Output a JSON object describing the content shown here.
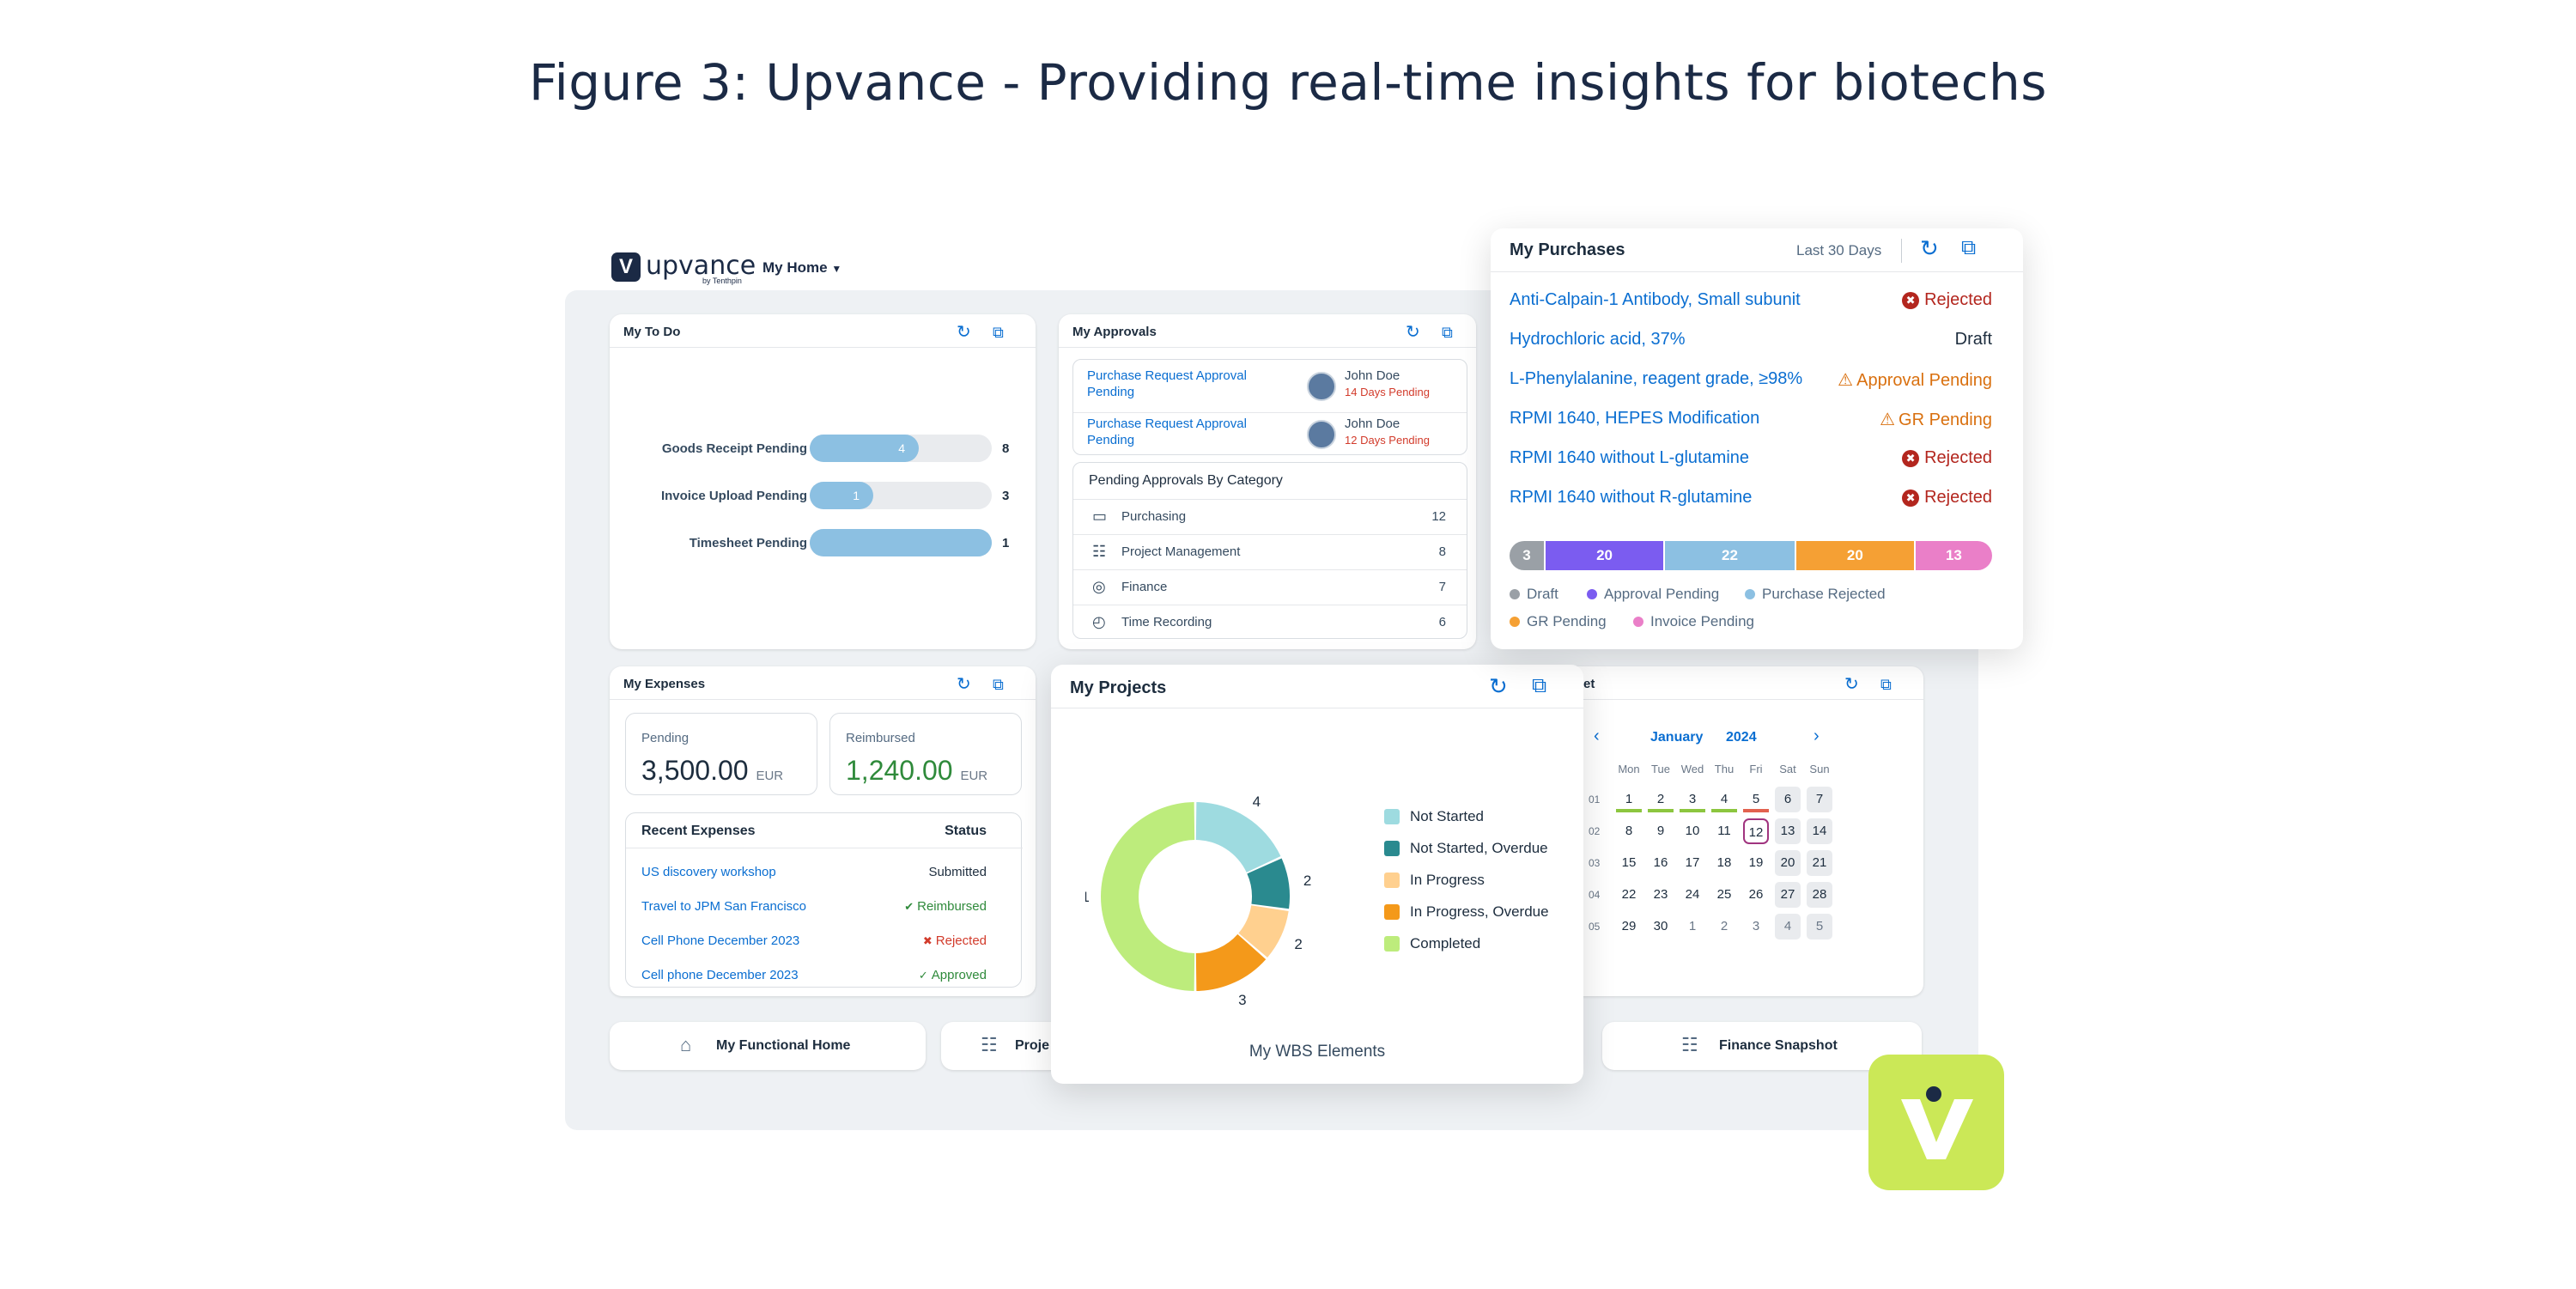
{
  "figure": {
    "title": "Figure 3: Upvance - Providing real-time insights for biotechs"
  },
  "header": {
    "logo_text": "upvance",
    "logo_sub": "by Tenthpin",
    "nav_label": "My Home"
  },
  "icons": {
    "refresh": "refresh-icon",
    "popout": "popout-icon",
    "chevron": "chevron-down-icon"
  },
  "todo": {
    "title": "My To Do",
    "items": [
      {
        "label": "Goods Receipt Pending",
        "inner": "4",
        "total": "8",
        "fraction": 0.6
      },
      {
        "label": "Invoice Upload Pending",
        "inner": "1",
        "total": "3",
        "fraction": 0.35
      },
      {
        "label": "Timesheet Pending",
        "inner": "",
        "total": "1",
        "fraction": 1.0
      }
    ]
  },
  "approvals": {
    "title": "My Approvals",
    "requests": [
      {
        "line1": "Purchase Request Approval",
        "line2": "Pending",
        "name": "John Doe",
        "days": "14 Days Pending"
      },
      {
        "line1": "Purchase Request Approval",
        "line2": "Pending",
        "name": "John Doe",
        "days": "12 Days Pending"
      }
    ],
    "category_title": "Pending Approvals By Category",
    "categories": [
      {
        "label": "Purchasing",
        "count": "12",
        "icon": "card-icon"
      },
      {
        "label": "Project Management",
        "count": "8",
        "icon": "calendar-icon"
      },
      {
        "label": "Finance",
        "count": "7",
        "icon": "coin-icon"
      },
      {
        "label": "Time Recording",
        "count": "6",
        "icon": "clock-icon"
      }
    ]
  },
  "purchases": {
    "title": "My Purchases",
    "period": "Last 30 Days",
    "items": [
      {
        "name": "Anti-Calpain-1 Antibody, Small subunit",
        "status": "Rejected",
        "kind": "rejected"
      },
      {
        "name": "Hydrochloric acid, 37%",
        "status": "Draft",
        "kind": "draft"
      },
      {
        "name": "L-Phenylalanine, reagent grade, ≥98%",
        "status": "Approval Pending",
        "kind": "warning"
      },
      {
        "name": "RPMI 1640, HEPES Modification",
        "status": "GR Pending",
        "kind": "warning"
      },
      {
        "name": "RPMI 1640 without L-glutamine",
        "status": "Rejected",
        "kind": "rejected"
      },
      {
        "name": "RPMI 1640 without R-glutamine",
        "status": "Rejected",
        "kind": "rejected"
      }
    ],
    "segments": [
      {
        "name": "Draft",
        "value": 3,
        "label": "3",
        "color": "#9aa0a6"
      },
      {
        "name": "Approval Pending",
        "value": 20,
        "label": "20",
        "color": "#7b5cf0"
      },
      {
        "name": "Purchase Rejected",
        "value": 22,
        "label": "22",
        "color": "#8cc0e2"
      },
      {
        "name": "GR Pending",
        "value": 20,
        "label": "20",
        "color": "#f5a034"
      },
      {
        "name": "Invoice Pending",
        "value": 13,
        "label": "13",
        "color": "#ea7fc8"
      }
    ]
  },
  "expenses": {
    "title": "My Expenses",
    "pending_label": "Pending",
    "pending_value": "3,500.00",
    "pending_unit": "EUR",
    "reimbursed_label": "Reimbursed",
    "reimbursed_value": "1,240.00",
    "reimbursed_unit": "EUR",
    "table_title": "Recent Expenses",
    "status_header": "Status",
    "rows": [
      {
        "name": "US discovery workshop",
        "status": "Submitted",
        "kind": "plain"
      },
      {
        "name": "Travel to JPM San Francisco",
        "status": "Reimbursed",
        "kind": "ok"
      },
      {
        "name": "Cell Phone December 2023",
        "status": "Rejected",
        "kind": "rejected"
      },
      {
        "name": "Cell phone December 2023",
        "status": "Approved",
        "kind": "approved"
      }
    ]
  },
  "projects": {
    "title": "My Projects",
    "footer": "My WBS Elements",
    "chart_data": {
      "type": "pie",
      "categories": [
        "Not Started",
        "Not Started, Overdue",
        "In Progress",
        "In Progress, Overdue",
        "Completed"
      ],
      "values": [
        4,
        2,
        2,
        3,
        11
      ],
      "colors": [
        "#9edbe0",
        "#2a8a8f",
        "#ffd08f",
        "#f4991a",
        "#bdec7c"
      ],
      "title": "My WBS Elements"
    }
  },
  "timesheet": {
    "title_fragment": "et",
    "month": "January",
    "year": "2024",
    "days": [
      "Mon",
      "Tue",
      "Wed",
      "Thu",
      "Fri",
      "Sat",
      "Sun"
    ],
    "weeks": [
      {
        "wk": "01",
        "d": [
          "1",
          "2",
          "3",
          "4",
          "5",
          "6",
          "7"
        ]
      },
      {
        "wk": "02",
        "d": [
          "8",
          "9",
          "10",
          "11",
          "12",
          "13",
          "14"
        ]
      },
      {
        "wk": "03",
        "d": [
          "15",
          "16",
          "17",
          "18",
          "19",
          "20",
          "21"
        ]
      },
      {
        "wk": "04",
        "d": [
          "22",
          "23",
          "24",
          "25",
          "26",
          "27",
          "28"
        ]
      },
      {
        "wk": "05",
        "d": [
          "29",
          "30",
          "1",
          "2",
          "3",
          "4",
          "5"
        ]
      }
    ],
    "today": "12"
  },
  "quick_links": [
    {
      "label": "My Functional Home",
      "icon": "home-icon"
    },
    {
      "label": "Proje",
      "icon": "chart-icon"
    },
    {
      "label": "Finance Snapshot",
      "icon": "finance-icon"
    }
  ]
}
